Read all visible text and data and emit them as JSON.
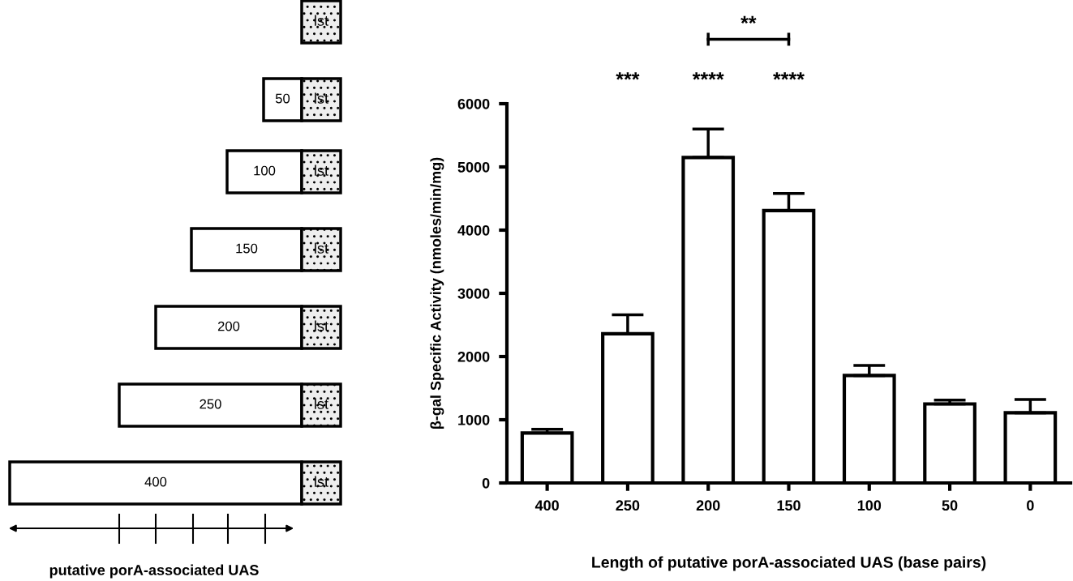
{
  "chart_data": [
    {
      "type": "other",
      "xlabel": "putative porA-associated UAS",
      "annotations": [
        "lst",
        "50",
        "lst",
        "100",
        "lst",
        "150",
        "lst",
        "200",
        "lst",
        "250",
        "lst",
        "400",
        "lst"
      ]
    },
    {
      "type": "bar",
      "categories": [
        "400",
        "250",
        "200",
        "150",
        "100",
        "50",
        "0"
      ],
      "values": [
        790,
        2360,
        5150,
        4310,
        1700,
        1250,
        1110
      ],
      "errors": [
        [
          790,
          850
        ],
        [
          2360,
          2660
        ],
        [
          5150,
          5600
        ],
        [
          4310,
          4580
        ],
        [
          1700,
          1860
        ],
        [
          1250,
          1310
        ],
        [
          1110,
          1320
        ]
      ],
      "color": "#ffffff",
      "ylim": [
        0,
        6000
      ],
      "yticks": [
        0,
        1000,
        2000,
        3000,
        4000,
        5000,
        6000
      ],
      "ylabel": "β-gal Specific Activity (nmoles/min/mg)",
      "xlabel": "Length of putative porA-associated UAS (base pairs)",
      "grid": false,
      "legend": false,
      "annotations": [
        "***",
        "****",
        "****",
        "**"
      ]
    }
  ]
}
